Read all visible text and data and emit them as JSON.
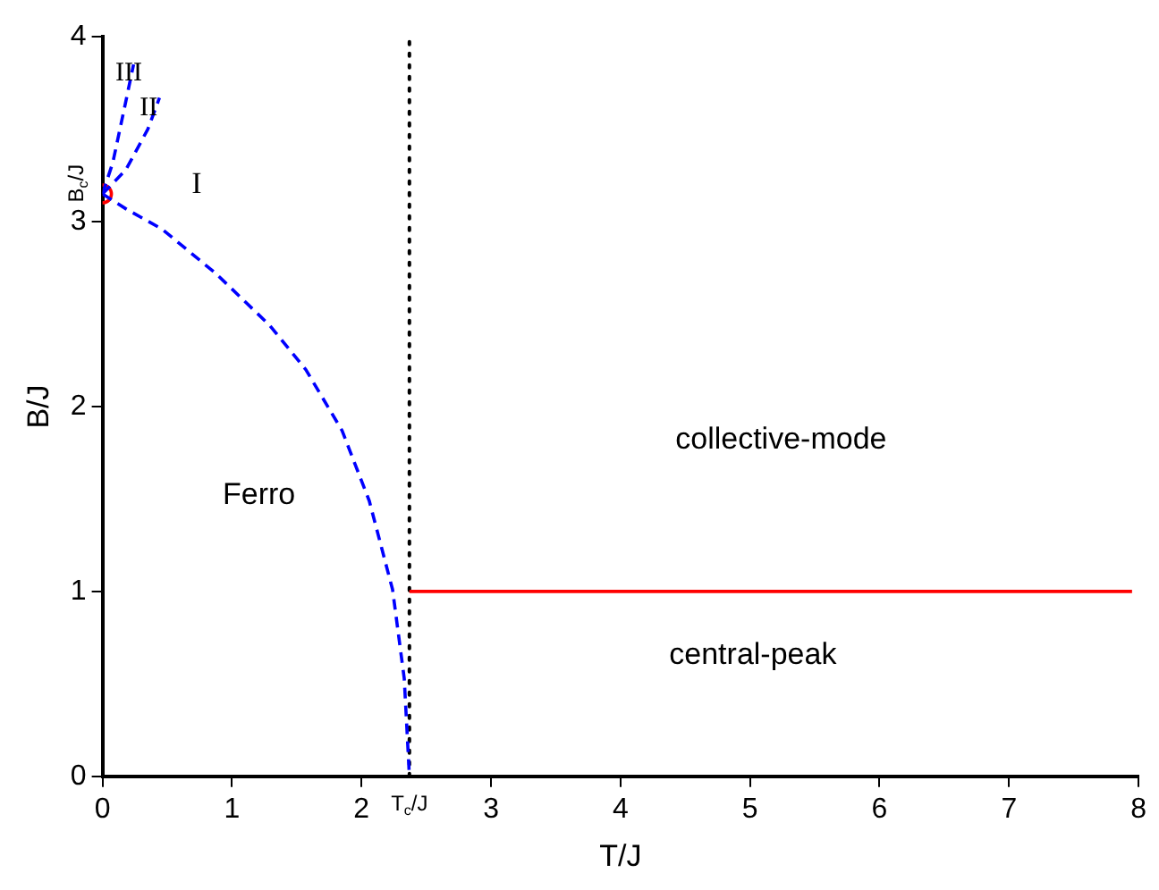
{
  "chart_data": {
    "type": "line",
    "xlabel": "T/J",
    "ylabel": "B/J",
    "xlim": [
      0,
      8
    ],
    "ylim": [
      0,
      4
    ],
    "xticks": [
      0,
      1,
      2,
      3,
      4,
      5,
      6,
      7,
      8
    ],
    "yticks": [
      0,
      1,
      2,
      3,
      4
    ],
    "grid": false,
    "legend": false,
    "series": [
      {
        "color": "#0000ff",
        "line_style": "dashed",
        "marker": "none",
        "x": [
          0,
          0.18,
          0.46,
          0.875,
          1.29,
          1.57,
          1.85,
          2.06,
          2.24,
          2.33,
          2.37
        ],
        "values": [
          3.15,
          3.07,
          2.96,
          2.72,
          2.44,
          2.2,
          1.87,
          1.49,
          1.01,
          0.53,
          0
        ]
      },
      {
        "color": "#0000ff",
        "line_style": "dashed",
        "marker": "none",
        "x": [
          0,
          0.18,
          0.35,
          0.44
        ],
        "values": [
          3.15,
          3.28,
          3.5,
          3.67
        ]
      },
      {
        "color": "#0000ff",
        "line_style": "dashed",
        "marker": "none",
        "x": [
          0,
          0.08,
          0.18,
          0.24
        ],
        "values": [
          3.15,
          3.32,
          3.65,
          3.85
        ]
      },
      {
        "color": "#ff0000",
        "line_style": "solid",
        "marker": "none",
        "x": [
          2.37,
          7.95
        ],
        "values": [
          1,
          1
        ]
      },
      {
        "type": "scatter",
        "color": "#ff0000",
        "marker": "circle",
        "x": [
          0
        ],
        "values": [
          3.15
        ]
      }
    ],
    "ref_lines": [
      {
        "axis": "x",
        "value": 2.37,
        "color": "#000000",
        "line_style": "dotted"
      }
    ],
    "annotations": [
      "III",
      "II",
      "I",
      "Ferro",
      "collective-mode",
      "central-peak",
      {
        "text": "B$_{c}$/J",
        "x": 0,
        "y": 3.15
      },
      {
        "text": "T$_{c}$/J",
        "x": 2.37,
        "y": 0
      }
    ]
  }
}
